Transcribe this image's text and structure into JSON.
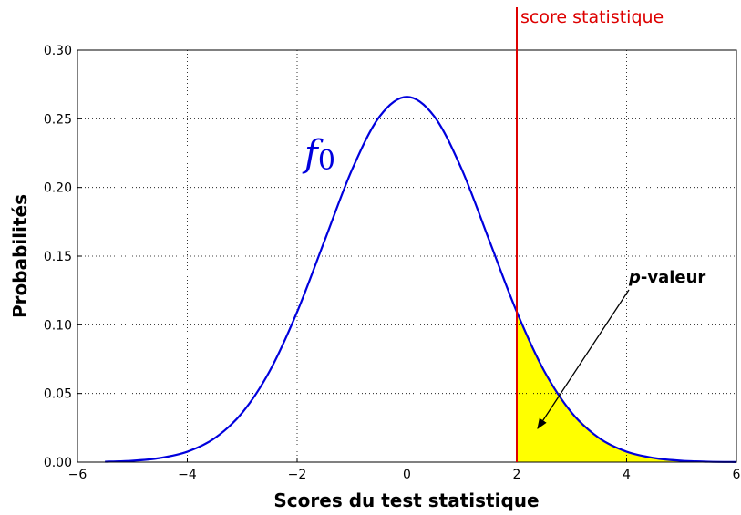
{
  "chart_data": {
    "type": "line",
    "x": [
      -5.5,
      -5,
      -4.5,
      -4,
      -3.5,
      -3,
      -2.5,
      -2,
      -1.5,
      -1,
      -0.5,
      0,
      0.5,
      1,
      1.5,
      2,
      2.5,
      3,
      3.5,
      4,
      4.5,
      5,
      5.5,
      6
    ],
    "series": [
      {
        "name": "f0",
        "color": "#0000dd",
        "values": [
          0.0003,
          0.001,
          0.003,
          0.0076,
          0.0175,
          0.036,
          0.0663,
          0.1094,
          0.1613,
          0.213,
          0.2516,
          0.266,
          0.2516,
          0.213,
          0.1613,
          0.1094,
          0.0663,
          0.036,
          0.0175,
          0.0076,
          0.003,
          0.001,
          0.0003,
          0.0001
        ]
      }
    ],
    "fill_from_x": 2,
    "fill_color": "#ffff00",
    "threshold": {
      "x": 2,
      "label": "score statistique",
      "color": "#dd0000"
    },
    "annotation": "p-valeur",
    "xlabel": "Scores du test statistique",
    "ylabel": "Probabilités",
    "xlim": [
      -6,
      6
    ],
    "ylim": [
      0,
      0.3
    ],
    "xticks": [
      {
        "value": -6,
        "label": "−6"
      },
      {
        "value": -4,
        "label": "−4"
      },
      {
        "value": -2,
        "label": "−2"
      },
      0,
      2,
      4,
      6
    ],
    "yticks": [
      {
        "value": 0,
        "label": "0.00"
      },
      {
        "value": 0.05,
        "label": "0.05"
      },
      {
        "value": 0.1,
        "label": "0.10"
      },
      {
        "value": 0.15,
        "label": "0.15"
      },
      {
        "value": 0.2,
        "label": "0.20"
      },
      {
        "value": 0.25,
        "label": "0.25"
      },
      {
        "value": 0.3,
        "label": "0.30"
      }
    ],
    "grid": true
  }
}
